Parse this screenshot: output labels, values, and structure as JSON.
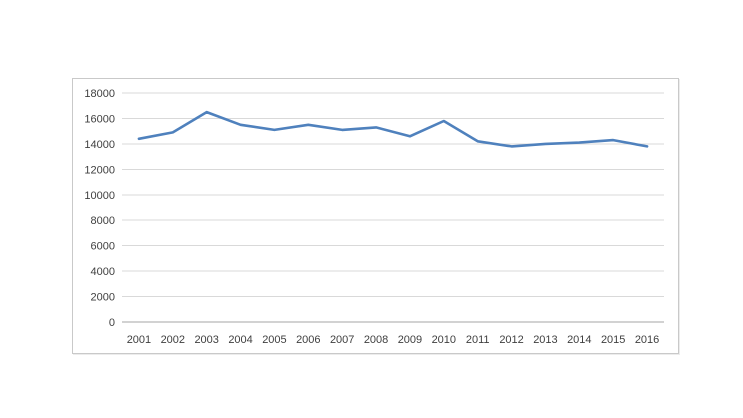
{
  "window": {
    "background": "#ffffff"
  },
  "chart_data": {
    "type": "line",
    "title": "",
    "xlabel": "",
    "ylabel": "",
    "categories": [
      "2001",
      "2002",
      "2003",
      "2004",
      "2005",
      "2006",
      "2007",
      "2008",
      "2009",
      "2010",
      "2011",
      "2012",
      "2013",
      "2014",
      "2015",
      "2016"
    ],
    "values": [
      14400,
      14900,
      16500,
      15500,
      15100,
      15500,
      15100,
      15300,
      14600,
      15800,
      14200,
      13800,
      14000,
      14100,
      14300,
      13800
    ],
    "ylim": [
      0,
      18000
    ],
    "yticks": [
      0,
      2000,
      4000,
      6000,
      8000,
      10000,
      12000,
      14000,
      16000,
      18000
    ],
    "grid": true,
    "legend": "none",
    "colors": {
      "line": "#4F81BD",
      "gridline": "#d9d9d9",
      "axis_line": "#a6a6a6",
      "tick_label": "#3f3f3f",
      "chart_border": "#c9c9c9",
      "background": "#ffffff"
    }
  }
}
